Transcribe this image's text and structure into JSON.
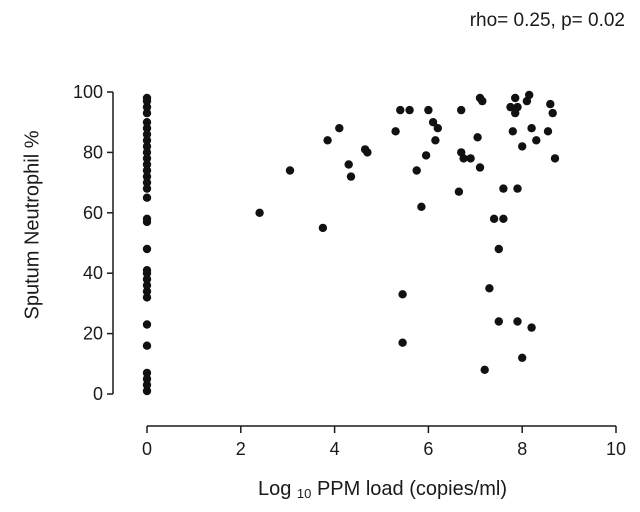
{
  "chart_data": {
    "type": "scatter",
    "title": "",
    "annotation": "rho= 0.25, p= 0.02",
    "xlabel": {
      "prefix": "Log",
      "sub": "10",
      "suffix": "PPM load (copies/ml)"
    },
    "ylabel": "Sputum Neutrophil %",
    "xlim": [
      0,
      10
    ],
    "ylim": [
      0,
      100
    ],
    "xticks": [
      "0",
      "2",
      "4",
      "6",
      "8",
      "10"
    ],
    "yticks": [
      "0",
      "20",
      "40",
      "60",
      "80",
      "100"
    ],
    "grid": false,
    "marker_color": "#111111",
    "points": [
      [
        0,
        1
      ],
      [
        0,
        3
      ],
      [
        0,
        5
      ],
      [
        0,
        7
      ],
      [
        0,
        16
      ],
      [
        0,
        23
      ],
      [
        0,
        32
      ],
      [
        0,
        34
      ],
      [
        0,
        36
      ],
      [
        0,
        38
      ],
      [
        0,
        40
      ],
      [
        0,
        41
      ],
      [
        0,
        48
      ],
      [
        0,
        57
      ],
      [
        0,
        58
      ],
      [
        0,
        65
      ],
      [
        0,
        68
      ],
      [
        0,
        70
      ],
      [
        0,
        72
      ],
      [
        0,
        74
      ],
      [
        0,
        76
      ],
      [
        0,
        78
      ],
      [
        0,
        80
      ],
      [
        0,
        82
      ],
      [
        0,
        84
      ],
      [
        0,
        86
      ],
      [
        0,
        88
      ],
      [
        0,
        90
      ],
      [
        0,
        93
      ],
      [
        0,
        95
      ],
      [
        0,
        97
      ],
      [
        0,
        98
      ],
      [
        2.4,
        60
      ],
      [
        3.05,
        74
      ],
      [
        3.75,
        55
      ],
      [
        3.85,
        84
      ],
      [
        4.1,
        88
      ],
      [
        4.3,
        76
      ],
      [
        4.35,
        72
      ],
      [
        4.65,
        81
      ],
      [
        4.7,
        80
      ],
      [
        5.3,
        87
      ],
      [
        5.4,
        94
      ],
      [
        5.45,
        17
      ],
      [
        5.45,
        33
      ],
      [
        5.6,
        94
      ],
      [
        5.75,
        74
      ],
      [
        5.85,
        62
      ],
      [
        5.95,
        79
      ],
      [
        6.0,
        94
      ],
      [
        6.1,
        90
      ],
      [
        6.15,
        84
      ],
      [
        6.2,
        88
      ],
      [
        6.65,
        67
      ],
      [
        6.7,
        94
      ],
      [
        6.7,
        80
      ],
      [
        6.75,
        78
      ],
      [
        6.9,
        78
      ],
      [
        7.05,
        85
      ],
      [
        7.1,
        75
      ],
      [
        7.1,
        98
      ],
      [
        7.15,
        97
      ],
      [
        7.2,
        8
      ],
      [
        7.3,
        35
      ],
      [
        7.4,
        58
      ],
      [
        7.5,
        48
      ],
      [
        7.5,
        24
      ],
      [
        7.6,
        58
      ],
      [
        7.6,
        68
      ],
      [
        7.75,
        95
      ],
      [
        7.8,
        87
      ],
      [
        7.85,
        98
      ],
      [
        7.85,
        93
      ],
      [
        7.9,
        24
      ],
      [
        7.9,
        68
      ],
      [
        7.9,
        95
      ],
      [
        8.0,
        12
      ],
      [
        8.0,
        82
      ],
      [
        8.1,
        97
      ],
      [
        8.15,
        99
      ],
      [
        8.2,
        22
      ],
      [
        8.2,
        88
      ],
      [
        8.3,
        84
      ],
      [
        8.55,
        87
      ],
      [
        8.6,
        96
      ],
      [
        8.65,
        93
      ],
      [
        8.7,
        78
      ]
    ]
  }
}
